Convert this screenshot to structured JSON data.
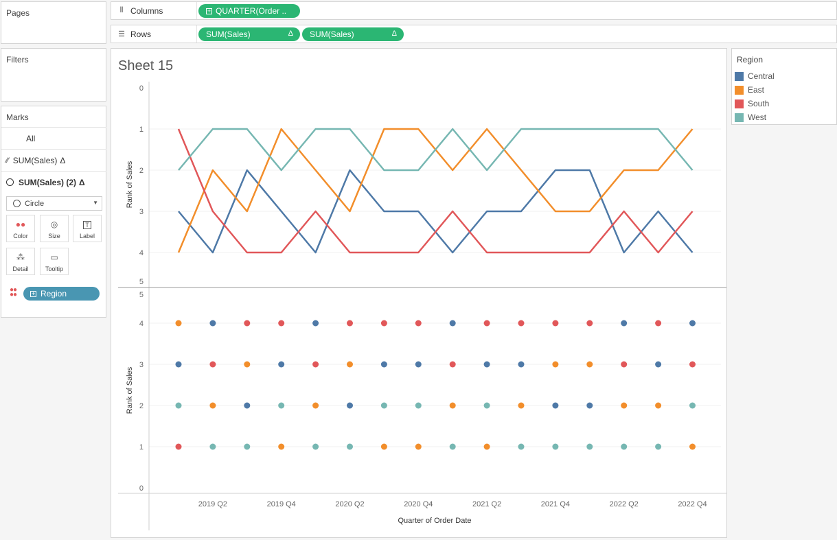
{
  "pages_panel": {
    "title": "Pages"
  },
  "filters_panel": {
    "title": "Filters"
  },
  "columns_shelf": {
    "label": "Columns",
    "pill": "QUARTER(Order .."
  },
  "rows_shelf": {
    "label": "Rows",
    "pills": [
      "SUM(Sales)",
      "SUM(Sales)"
    ],
    "delta": "Δ"
  },
  "marks": {
    "title": "Marks",
    "all": "All",
    "layer1": "SUM(Sales)",
    "layer2": "SUM(Sales) (2)",
    "delta": "Δ",
    "mark_type": "Circle",
    "buttons": {
      "color": "Color",
      "size": "Size",
      "label": "Label",
      "detail": "Detail",
      "tooltip": "Tooltip"
    },
    "region_pill": "Region"
  },
  "legend": {
    "title": "Region",
    "items": [
      {
        "name": "Central",
        "color": "#4e79a7"
      },
      {
        "name": "East",
        "color": "#f28e2b"
      },
      {
        "name": "South",
        "color": "#e15759"
      },
      {
        "name": "West",
        "color": "#76b7b2"
      }
    ]
  },
  "sheet": {
    "title": "Sheet 15"
  },
  "chart_data": {
    "type": "line",
    "x": [
      "2019 Q1",
      "2019 Q2",
      "2019 Q3",
      "2019 Q4",
      "2020 Q1",
      "2020 Q2",
      "2020 Q3",
      "2020 Q4",
      "2021 Q1",
      "2021 Q2",
      "2021 Q3",
      "2021 Q4",
      "2022 Q1",
      "2022 Q2",
      "2022 Q3",
      "2022 Q4"
    ],
    "x_tick_labels": [
      "2019 Q2",
      "2019 Q4",
      "2020 Q2",
      "2020 Q4",
      "2021 Q2",
      "2021 Q4",
      "2022 Q2",
      "2022 Q4"
    ],
    "xlabel": "Quarter of Order Date",
    "top_pane": {
      "ylabel": "Rank of Sales",
      "ylim": [
        0,
        5
      ],
      "y_reversed": true,
      "yticks": [
        "0",
        "1",
        "2",
        "3",
        "4",
        "5"
      ]
    },
    "bottom_pane": {
      "type": "scatter",
      "ylabel": "Rank of Sales",
      "ylim": [
        0,
        5
      ],
      "yticks": [
        "0",
        "1",
        "2",
        "3",
        "4",
        "5"
      ]
    },
    "series": [
      {
        "name": "Central",
        "color": "#4e79a7",
        "values": [
          3,
          4,
          2,
          3,
          4,
          2,
          3,
          3,
          4,
          3,
          3,
          2,
          2,
          4,
          3,
          4
        ]
      },
      {
        "name": "East",
        "color": "#f28e2b",
        "values": [
          4,
          2,
          3,
          1,
          2,
          3,
          1,
          1,
          2,
          1,
          2,
          3,
          3,
          2,
          2,
          1
        ]
      },
      {
        "name": "South",
        "color": "#e15759",
        "values": [
          1,
          3,
          4,
          4,
          3,
          4,
          4,
          4,
          3,
          4,
          4,
          4,
          4,
          3,
          4,
          3
        ]
      },
      {
        "name": "West",
        "color": "#76b7b2",
        "values": [
          2,
          1,
          1,
          2,
          1,
          1,
          2,
          2,
          1,
          2,
          1,
          1,
          1,
          1,
          1,
          2
        ]
      }
    ],
    "bottom_series": [
      {
        "name": "Central",
        "color": "#4e79a7",
        "values": [
          3,
          4,
          2,
          3,
          4,
          2,
          3,
          3,
          4,
          3,
          3,
          2,
          2,
          4,
          3,
          4
        ]
      },
      {
        "name": "East",
        "color": "#f28e2b",
        "values": [
          4,
          2,
          3,
          1,
          2,
          3,
          1,
          1,
          2,
          1,
          2,
          3,
          3,
          2,
          2,
          1
        ]
      },
      {
        "name": "South",
        "color": "#e15759",
        "values": [
          1,
          3,
          4,
          4,
          3,
          4,
          4,
          4,
          3,
          4,
          4,
          4,
          4,
          3,
          4,
          3
        ]
      },
      {
        "name": "West",
        "color": "#76b7b2",
        "values": [
          2,
          1,
          1,
          2,
          1,
          1,
          2,
          2,
          1,
          2,
          1,
          1,
          1,
          1,
          1,
          2
        ]
      }
    ],
    "grid": true
  }
}
